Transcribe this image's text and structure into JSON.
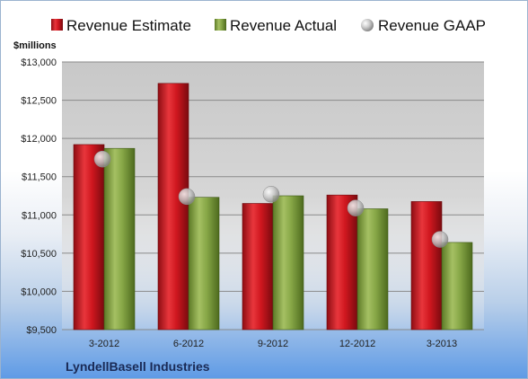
{
  "colors": {
    "estimate": "#d0171f",
    "actual": "#7f9f3f",
    "gaap": "#b8b8b8",
    "plot_bg": "#d4d4d4"
  },
  "chart_data": {
    "type": "bar",
    "categories": [
      "3-2012",
      "6-2012",
      "9-2012",
      "12-2012",
      "3-2013"
    ],
    "series": [
      {
        "name": "Revenue Estimate",
        "values": [
          11920,
          12720,
          11150,
          11260,
          11175
        ]
      },
      {
        "name": "Revenue Actual",
        "values": [
          11870,
          11230,
          11250,
          11080,
          10640
        ]
      },
      {
        "name": "Revenue GAAP",
        "values": [
          11730,
          11240,
          11270,
          11090,
          10680
        ]
      }
    ],
    "ylabel": "$millions",
    "ylim": [
      9500,
      13000
    ],
    "yticks": [
      "$9,500",
      "$10,000",
      "$10,500",
      "$11,000",
      "$11,500",
      "$12,000",
      "$12,500",
      "$13,000"
    ],
    "ytick_values": [
      9500,
      10000,
      10500,
      11000,
      11500,
      12000,
      12500,
      13000
    ],
    "grid": true,
    "legend_position": "top"
  },
  "footer": {
    "company": "LyndellBasell Industries"
  }
}
